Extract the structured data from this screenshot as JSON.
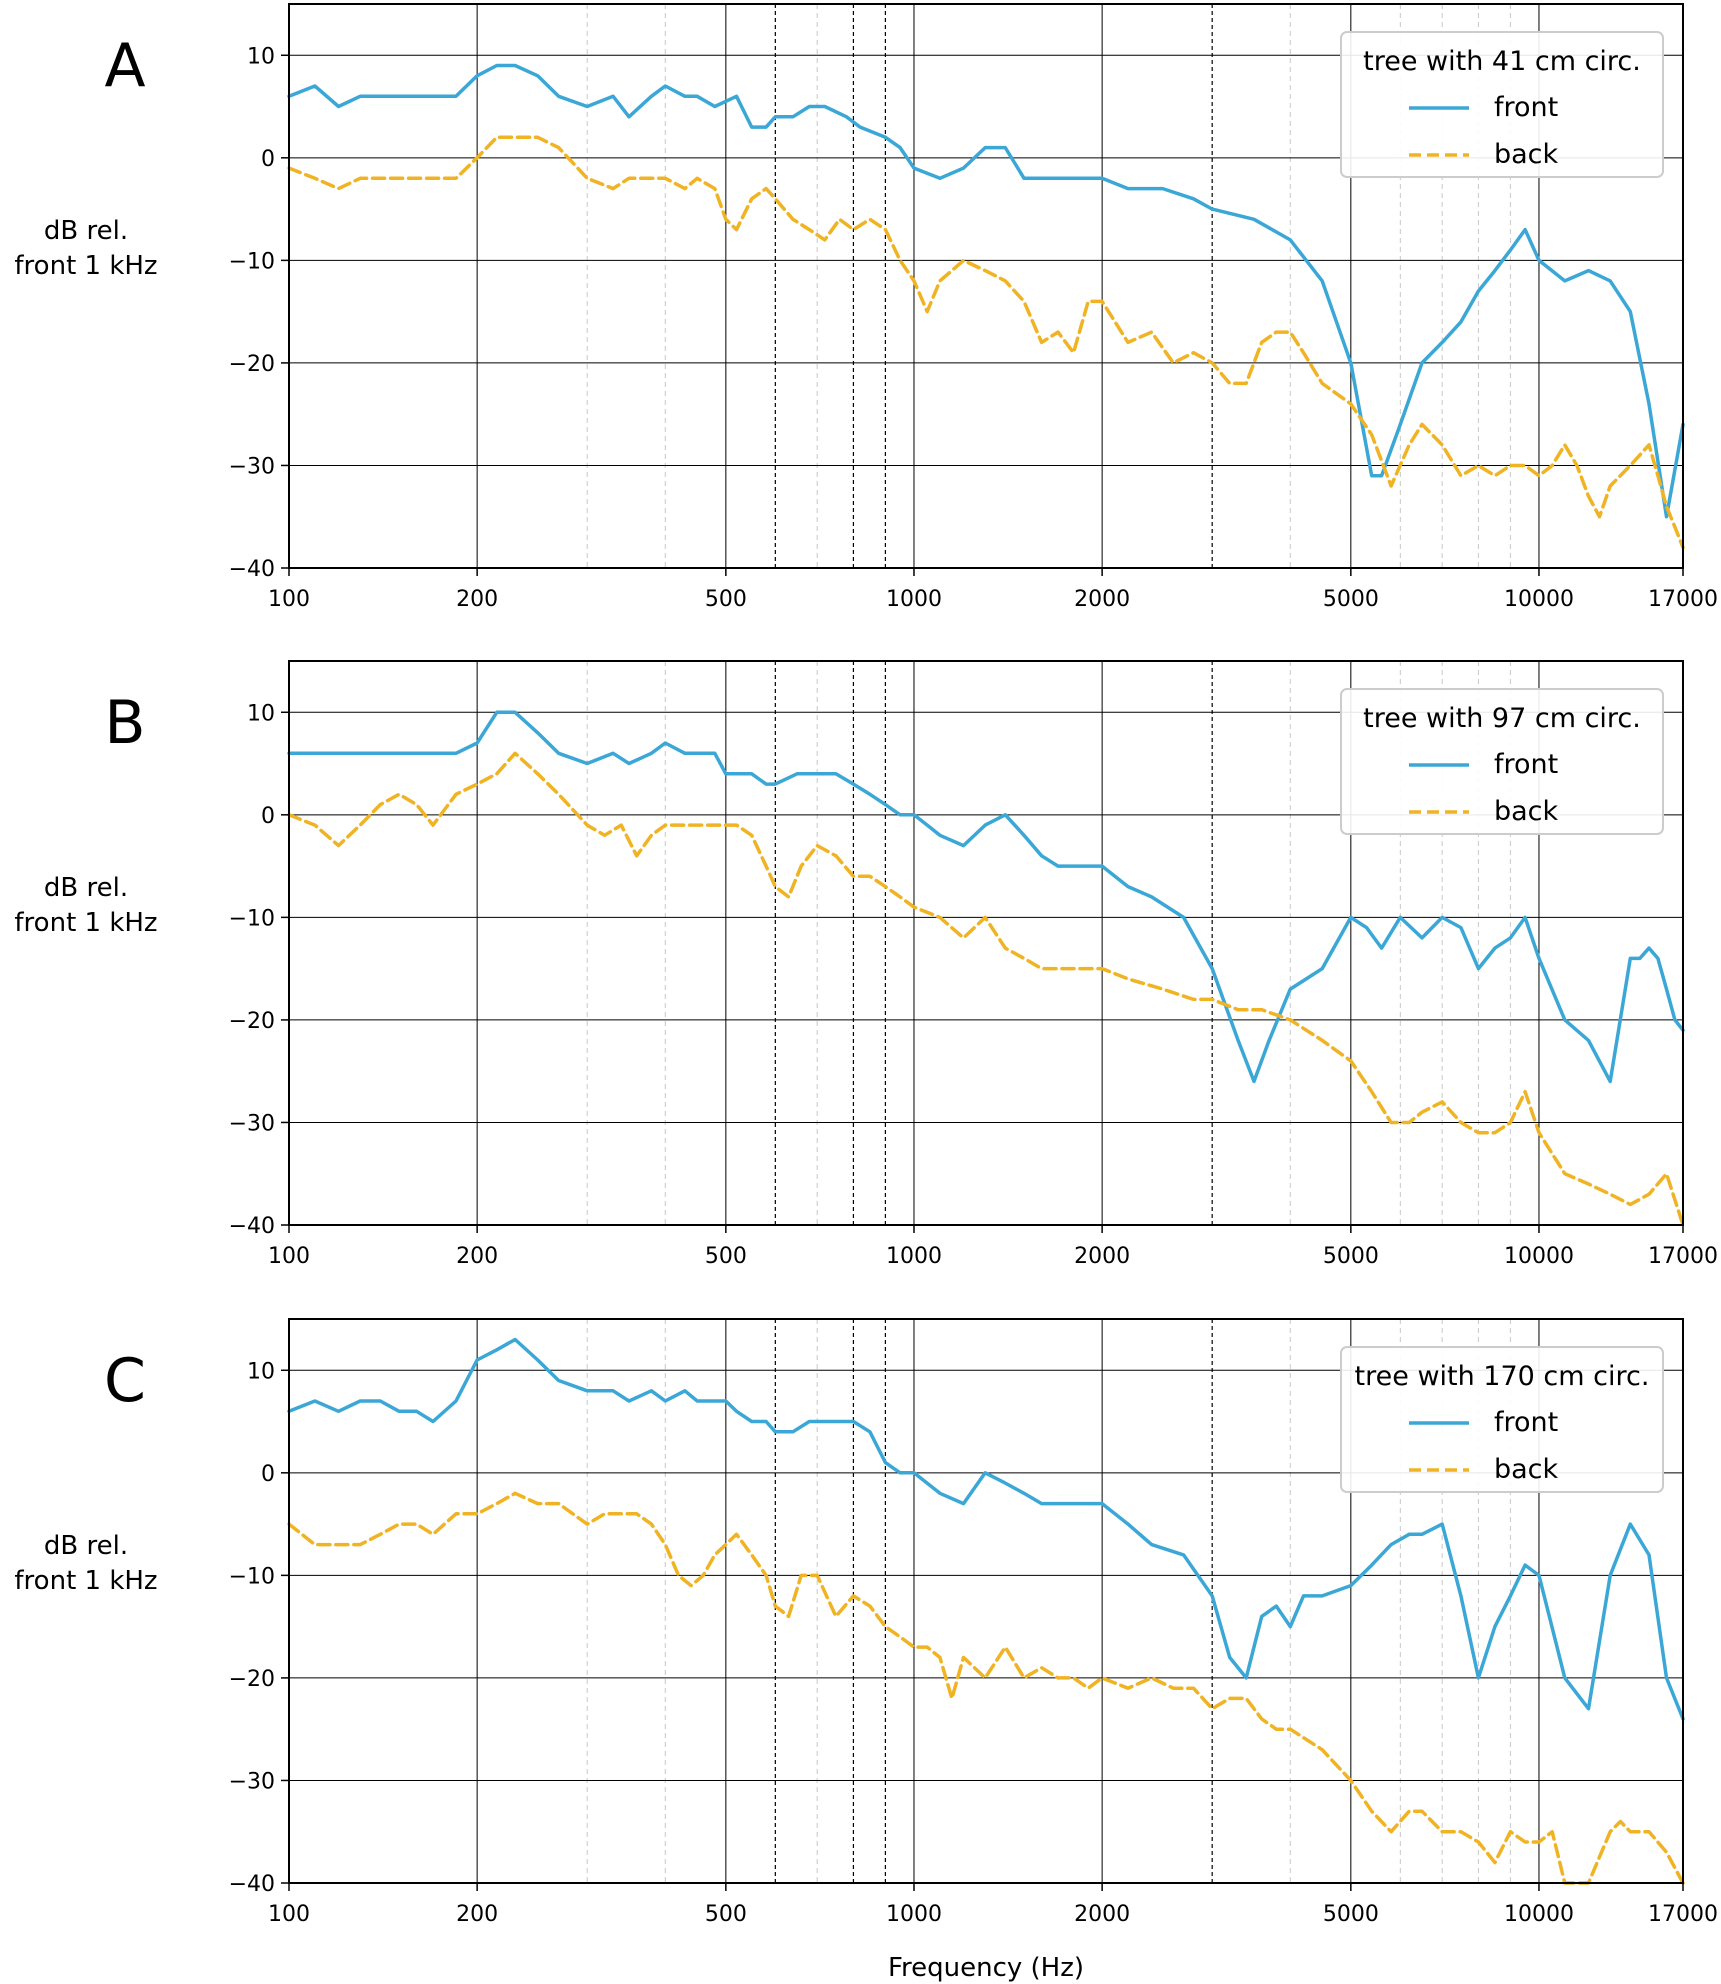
{
  "figure": {
    "xlabel": "Frequency (Hz)",
    "ylabel_line1": "dB rel.",
    "ylabel_line2": "front 1 kHz",
    "colors": {
      "front": "#3ba7d6",
      "back": "#f0b323"
    },
    "xticks": [
      100,
      200,
      500,
      1000,
      2000,
      5000,
      10000,
      17000
    ],
    "yticks": [
      10,
      0,
      -10,
      -20,
      -30,
      -40
    ],
    "xlim": [
      100,
      17000
    ],
    "ylim": [
      -40,
      15
    ],
    "xscale": "log",
    "grid": true,
    "dashed_vertical_markers_hz": [
      600,
      800,
      900,
      3000
    ],
    "minor_vertical_gridlines_hz": [
      300,
      400,
      700,
      4000,
      6000,
      7000,
      8000,
      9000
    ]
  },
  "chart_data": [
    {
      "type": "line",
      "panel": "A",
      "legend_title": "tree with 41 cm circ.",
      "legend_position": "top-right",
      "series": [
        {
          "name": "front",
          "style": "solid",
          "x": [
            100,
            110,
            120,
            130,
            150,
            170,
            185,
            200,
            215,
            230,
            250,
            270,
            300,
            330,
            350,
            380,
            400,
            430,
            450,
            480,
            520,
            550,
            580,
            600,
            640,
            680,
            720,
            780,
            820,
            900,
            950,
            1000,
            1100,
            1200,
            1300,
            1400,
            1500,
            1600,
            1800,
            2000,
            2200,
            2500,
            2800,
            3000,
            3500,
            4000,
            4500,
            5000,
            5400,
            5600,
            6000,
            6500,
            7000,
            7500,
            8000,
            8500,
            9000,
            9500,
            10000,
            11000,
            12000,
            13000,
            14000,
            15000,
            16000,
            17000
          ],
          "y": [
            6,
            7,
            5,
            6,
            6,
            6,
            6,
            8,
            9,
            9,
            8,
            6,
            5,
            6,
            4,
            6,
            7,
            6,
            6,
            5,
            6,
            3,
            3,
            4,
            4,
            5,
            5,
            4,
            3,
            2,
            1,
            -1,
            -2,
            -1,
            1,
            1,
            -2,
            -2,
            -2,
            -2,
            -3,
            -3,
            -4,
            -5,
            -6,
            -8,
            -12,
            -20,
            -31,
            -31,
            -26,
            -20,
            -18,
            -16,
            -13,
            -11,
            -9,
            -7,
            -10,
            -12,
            -11,
            -12,
            -15,
            -24,
            -35,
            -26
          ]
        },
        {
          "name": "back",
          "style": "dashed",
          "x": [
            100,
            110,
            120,
            130,
            150,
            170,
            185,
            200,
            215,
            230,
            250,
            270,
            300,
            330,
            350,
            380,
            400,
            430,
            450,
            480,
            500,
            520,
            550,
            580,
            600,
            640,
            680,
            720,
            760,
            800,
            850,
            900,
            950,
            1000,
            1050,
            1100,
            1150,
            1200,
            1300,
            1400,
            1500,
            1600,
            1700,
            1800,
            1900,
            2000,
            2200,
            2400,
            2600,
            2800,
            3000,
            3200,
            3400,
            3600,
            3800,
            4000,
            4200,
            4500,
            5000,
            5400,
            5800,
            6200,
            6500,
            7000,
            7500,
            8000,
            8500,
            9000,
            9500,
            10000,
            10500,
            11000,
            11500,
            12000,
            12500,
            13000,
            14000,
            15000,
            15500,
            16000,
            16500,
            17000
          ],
          "y": [
            -1,
            -2,
            -3,
            -2,
            -2,
            -2,
            -2,
            0,
            2,
            2,
            2,
            1,
            -2,
            -3,
            -2,
            -2,
            -2,
            -3,
            -2,
            -3,
            -6,
            -7,
            -4,
            -3,
            -4,
            -6,
            -7,
            -8,
            -6,
            -7,
            -6,
            -7,
            -10,
            -12,
            -15,
            -12,
            -11,
            -10,
            -11,
            -12,
            -14,
            -18,
            -17,
            -19,
            -14,
            -14,
            -18,
            -17,
            -20,
            -19,
            -20,
            -22,
            -22,
            -18,
            -17,
            -17,
            -19,
            -22,
            -24,
            -27,
            -32,
            -28,
            -26,
            -28,
            -31,
            -30,
            -31,
            -30,
            -30,
            -31,
            -30,
            -28,
            -30,
            -33,
            -35,
            -32,
            -30,
            -28,
            -31,
            -34,
            -36,
            -38
          ]
        }
      ]
    },
    {
      "type": "line",
      "panel": "B",
      "legend_title": "tree with 97 cm circ.",
      "legend_position": "top-right",
      "series": [
        {
          "name": "front",
          "style": "solid",
          "x": [
            100,
            110,
            120,
            130,
            150,
            170,
            185,
            200,
            215,
            230,
            250,
            270,
            300,
            330,
            350,
            380,
            400,
            430,
            450,
            480,
            500,
            520,
            550,
            580,
            600,
            650,
            700,
            750,
            800,
            850,
            900,
            950,
            1000,
            1050,
            1100,
            1200,
            1300,
            1400,
            1500,
            1600,
            1700,
            1800,
            1900,
            2000,
            2200,
            2400,
            2700,
            3000,
            3300,
            3500,
            3700,
            4000,
            4500,
            5000,
            5300,
            5600,
            6000,
            6500,
            7000,
            7500,
            8000,
            8500,
            9000,
            9500,
            10000,
            11000,
            12000,
            13000,
            14000,
            14500,
            15000,
            15500,
            16000,
            16500,
            17000
          ],
          "y": [
            6,
            6,
            6,
            6,
            6,
            6,
            6,
            7,
            10,
            10,
            8,
            6,
            5,
            6,
            5,
            6,
            7,
            6,
            6,
            6,
            4,
            4,
            4,
            3,
            3,
            4,
            4,
            4,
            3,
            2,
            1,
            0,
            0,
            -1,
            -2,
            -3,
            -1,
            0,
            -2,
            -4,
            -5,
            -5,
            -5,
            -5,
            -7,
            -8,
            -10,
            -15,
            -22,
            -26,
            -22,
            -17,
            -15,
            -10,
            -11,
            -13,
            -10,
            -12,
            -10,
            -11,
            -15,
            -13,
            -12,
            -10,
            -14,
            -20,
            -22,
            -26,
            -14,
            -14,
            -13,
            -14,
            -17,
            -20,
            -21
          ]
        },
        {
          "name": "back",
          "style": "dashed",
          "x": [
            100,
            110,
            120,
            130,
            140,
            150,
            160,
            170,
            185,
            200,
            215,
            230,
            250,
            270,
            300,
            320,
            340,
            360,
            380,
            400,
            430,
            450,
            480,
            500,
            520,
            550,
            580,
            600,
            630,
            660,
            700,
            750,
            800,
            850,
            900,
            950,
            1000,
            1100,
            1200,
            1300,
            1400,
            1500,
            1600,
            1800,
            2000,
            2200,
            2500,
            2800,
            3000,
            3300,
            3600,
            4000,
            4500,
            5000,
            5400,
            5800,
            6200,
            6500,
            7000,
            7500,
            8000,
            8500,
            9000,
            9500,
            10000,
            11000,
            12000,
            13000,
            14000,
            15000,
            16000,
            17000
          ],
          "y": [
            0,
            -1,
            -3,
            -1,
            1,
            2,
            1,
            -1,
            2,
            3,
            4,
            6,
            4,
            2,
            -1,
            -2,
            -1,
            -4,
            -2,
            -1,
            -1,
            -1,
            -1,
            -1,
            -1,
            -2,
            -5,
            -7,
            -8,
            -5,
            -3,
            -4,
            -6,
            -6,
            -7,
            -8,
            -9,
            -10,
            -12,
            -10,
            -13,
            -14,
            -15,
            -15,
            -15,
            -16,
            -17,
            -18,
            -18,
            -19,
            -19,
            -20,
            -22,
            -24,
            -27,
            -30,
            -30,
            -29,
            -28,
            -30,
            -31,
            -31,
            -30,
            -27,
            -31,
            -35,
            -36,
            -37,
            -38,
            -37,
            -35,
            -40
          ]
        }
      ]
    },
    {
      "type": "line",
      "panel": "C",
      "legend_title": "tree with 170 cm circ.",
      "legend_position": "top-right",
      "series": [
        {
          "name": "front",
          "style": "solid",
          "x": [
            100,
            110,
            120,
            130,
            140,
            150,
            160,
            170,
            185,
            200,
            215,
            230,
            250,
            270,
            300,
            330,
            350,
            380,
            400,
            430,
            450,
            480,
            500,
            520,
            550,
            580,
            600,
            640,
            680,
            720,
            760,
            800,
            850,
            900,
            950,
            1000,
            1100,
            1200,
            1300,
            1400,
            1500,
            1600,
            1800,
            2000,
            2200,
            2400,
            2700,
            3000,
            3200,
            3400,
            3600,
            3800,
            4000,
            4200,
            4500,
            5000,
            5400,
            5800,
            6200,
            6500,
            7000,
            7500,
            8000,
            8500,
            9000,
            9500,
            10000,
            11000,
            12000,
            13000,
            14000,
            15000,
            16000,
            17000
          ],
          "y": [
            6,
            7,
            6,
            7,
            7,
            6,
            6,
            5,
            7,
            11,
            12,
            13,
            11,
            9,
            8,
            8,
            7,
            8,
            7,
            8,
            7,
            7,
            7,
            6,
            5,
            5,
            4,
            4,
            5,
            5,
            5,
            5,
            4,
            1,
            0,
            0,
            -2,
            -3,
            0,
            -1,
            -2,
            -3,
            -3,
            -3,
            -5,
            -7,
            -8,
            -12,
            -18,
            -20,
            -14,
            -13,
            -15,
            -12,
            -12,
            -11,
            -9,
            -7,
            -6,
            -6,
            -5,
            -12,
            -20,
            -15,
            -12,
            -9,
            -10,
            -20,
            -23,
            -10,
            -5,
            -8,
            -20,
            -24
          ]
        },
        {
          "name": "back",
          "style": "dashed",
          "x": [
            100,
            110,
            120,
            130,
            140,
            150,
            160,
            170,
            185,
            200,
            215,
            230,
            250,
            270,
            300,
            320,
            340,
            360,
            380,
            400,
            420,
            440,
            460,
            480,
            500,
            520,
            550,
            580,
            600,
            630,
            660,
            700,
            750,
            800,
            850,
            900,
            950,
            1000,
            1050,
            1100,
            1150,
            1200,
            1300,
            1400,
            1500,
            1600,
            1700,
            1800,
            1900,
            2000,
            2200,
            2400,
            2600,
            2800,
            3000,
            3200,
            3400,
            3600,
            3800,
            4000,
            4500,
            5000,
            5400,
            5800,
            6200,
            6500,
            7000,
            7500,
            8000,
            8500,
            9000,
            9500,
            10000,
            10500,
            11000,
            12000,
            13000,
            13500,
            14000,
            15000,
            16000,
            17000
          ],
          "y": [
            -5,
            -7,
            -7,
            -7,
            -6,
            -5,
            -5,
            -6,
            -4,
            -4,
            -3,
            -2,
            -3,
            -3,
            -5,
            -4,
            -4,
            -4,
            -5,
            -7,
            -10,
            -11,
            -10,
            -8,
            -7,
            -6,
            -8,
            -10,
            -13,
            -14,
            -10,
            -10,
            -14,
            -12,
            -13,
            -15,
            -16,
            -17,
            -17,
            -18,
            -22,
            -18,
            -20,
            -17,
            -20,
            -19,
            -20,
            -20,
            -21,
            -20,
            -21,
            -20,
            -21,
            -21,
            -23,
            -22,
            -22,
            -24,
            -25,
            -25,
            -27,
            -30,
            -33,
            -35,
            -33,
            -33,
            -35,
            -35,
            -36,
            -38,
            -35,
            -36,
            -36,
            -35,
            -40,
            -40,
            -35,
            -34,
            -35,
            -35,
            -37,
            -40
          ]
        }
      ]
    }
  ]
}
